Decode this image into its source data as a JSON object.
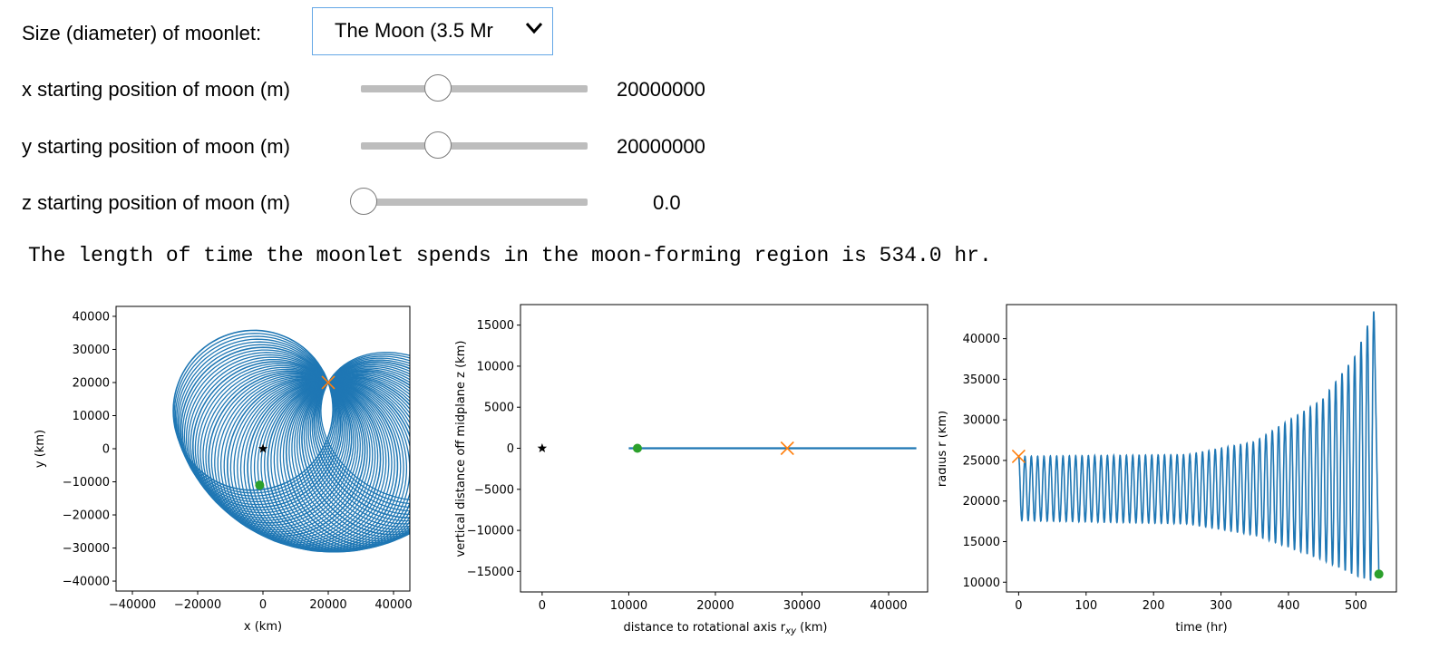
{
  "widgets": {
    "size_label": "Size (diameter) of moonlet:",
    "size_selected": "The Moon (3.5 Mr",
    "sliders": [
      {
        "label": "x starting position of moon (m)",
        "value_text": "20000000",
        "value": 20000000,
        "fraction": 0.34
      },
      {
        "label": "y starting position of moon (m)",
        "value_text": "20000000",
        "value": 20000000,
        "fraction": 0.34
      },
      {
        "label": "z starting position of moon (m)",
        "value_text": "0.0",
        "value": 0.0,
        "fraction": 0.01
      }
    ]
  },
  "output": {
    "message": "The length of time the moonlet spends in the moon-forming region is 534.0 hr."
  },
  "colors": {
    "orbit": "#1f77b4",
    "start_marker": "#ff7f0e",
    "end_marker": "#2ca02c",
    "center_star": "#000000",
    "slider_track": "#bdbdbd",
    "select_border": "#64a7e6"
  },
  "chart_data": [
    {
      "type": "line",
      "xlabel": "x (km)",
      "ylabel": "y (km)",
      "xlim": [
        -45000,
        45000
      ],
      "ylim": [
        -43000,
        43000
      ],
      "xticks": [
        -40000,
        -20000,
        0,
        20000,
        40000
      ],
      "xtick_labels": [
        "−40000",
        "−20000",
        "0",
        "20000",
        "40000"
      ],
      "yticks": [
        40000,
        30000,
        20000,
        10000,
        0,
        -10000,
        -20000,
        -30000,
        -40000
      ],
      "ytick_labels": [
        "40000",
        "30000",
        "20000",
        "10000",
        "0",
        "−10000",
        "−20000",
        "−30000",
        "−40000"
      ],
      "center": [
        0,
        0
      ],
      "start": [
        20000,
        20000
      ],
      "end": [
        -1000,
        -11000
      ],
      "orbit_shape": "spiral-ellipse",
      "ellipse_semi_major_start": 24500,
      "ellipse_semi_major_end": 26500,
      "eccentricity_start": 0.18,
      "eccentricity_end": 0.62
    },
    {
      "type": "line",
      "xlabel": "distance to rotational axis r",
      "xlabel_subscript": "xy",
      "xlabel_unit": "(km)",
      "ylabel": "vertical distance off midplane z (km)",
      "xlim": [
        -2500,
        44500
      ],
      "ylim": [
        -17500,
        17500
      ],
      "xticks": [
        0,
        10000,
        20000,
        30000,
        40000
      ],
      "xtick_labels": [
        "0",
        "10000",
        "20000",
        "30000",
        "40000"
      ],
      "yticks": [
        15000,
        10000,
        5000,
        0,
        -5000,
        -10000,
        -15000
      ],
      "ytick_labels": [
        "15000",
        "10000",
        "5000",
        "0",
        "−5000",
        "−10000",
        "−15000"
      ],
      "center": [
        0,
        0
      ],
      "line_x": [
        10000,
        43200
      ],
      "line_y": [
        0,
        0
      ],
      "start": [
        28300,
        0
      ],
      "end": [
        11000,
        0
      ]
    },
    {
      "type": "line",
      "xlabel": "time (hr)",
      "ylabel": "radius r (km)",
      "xlim": [
        -18,
        560
      ],
      "ylim": [
        8800,
        44200
      ],
      "xticks": [
        0,
        100,
        200,
        300,
        400,
        500
      ],
      "xtick_labels": [
        "0",
        "100",
        "200",
        "300",
        "400",
        "500"
      ],
      "yticks": [
        40000,
        35000,
        30000,
        25000,
        20000,
        15000,
        10000
      ],
      "ytick_labels": [
        "40000",
        "35000",
        "30000",
        "25000",
        "20000",
        "15000",
        "10000"
      ],
      "t_end": 534,
      "period_hr": 9.4,
      "start": [
        0,
        25500
      ],
      "end": [
        534,
        11000
      ],
      "max_envelope": [
        [
          0,
          25500
        ],
        [
          250,
          25700
        ],
        [
          350,
          27300
        ],
        [
          450,
          32500
        ],
        [
          500,
          38000
        ],
        [
          525,
          43300
        ]
      ],
      "min_envelope": [
        [
          0,
          17600
        ],
        [
          250,
          17200
        ],
        [
          350,
          15800
        ],
        [
          450,
          12800
        ],
        [
          500,
          10800
        ],
        [
          525,
          10100
        ]
      ]
    }
  ]
}
